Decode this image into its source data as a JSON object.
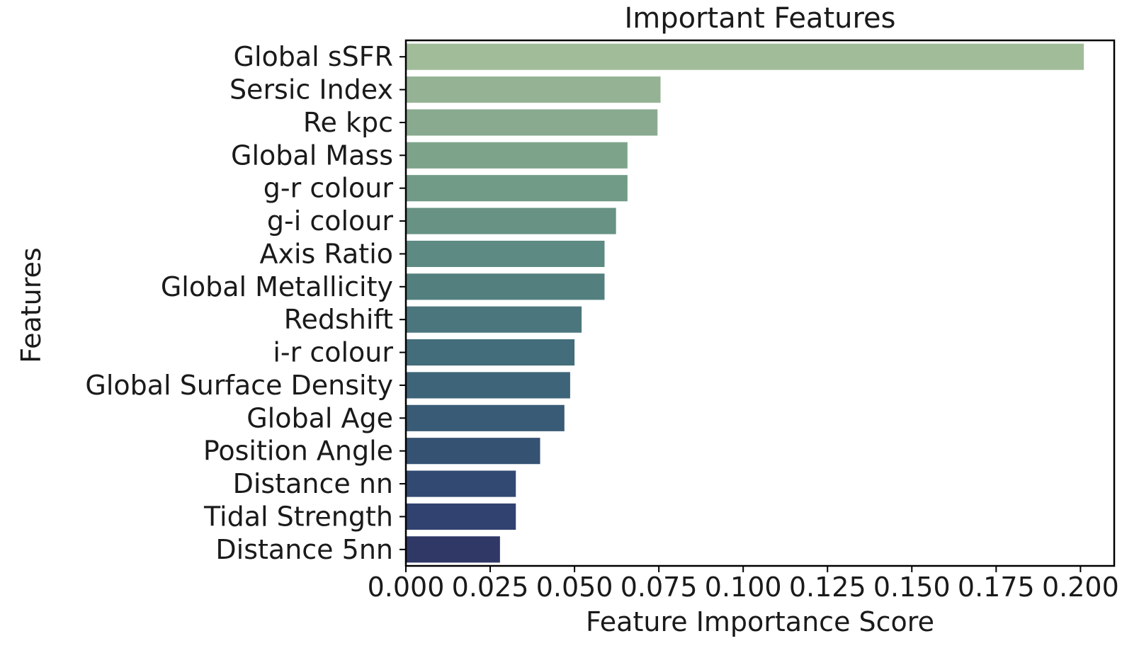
{
  "chart_data": {
    "type": "bar",
    "orientation": "horizontal",
    "title": "Important Features",
    "xlabel": "Feature Importance Score",
    "ylabel": "Features",
    "xlim": [
      0,
      0.21
    ],
    "xticks": [
      0.0,
      0.025,
      0.05,
      0.075,
      0.1,
      0.125,
      0.15,
      0.175,
      0.2
    ],
    "xtick_labels": [
      "0.000",
      "0.025",
      "0.050",
      "0.075",
      "0.100",
      "0.125",
      "0.150",
      "0.175",
      "0.200"
    ],
    "grid": false,
    "categories": [
      "Global sSFR",
      "Sersic Index",
      "Re kpc",
      "Global Mass",
      "g-r colour",
      "g-i colour",
      "Axis Ratio",
      "Global Metallicity",
      "Redshift",
      "i-r colour",
      "Global Surface Density",
      "Global Age",
      "Position Angle",
      "Distance nn",
      "Tidal Strength",
      "Distance 5nn"
    ],
    "values": [
      0.201,
      0.0755,
      0.0746,
      0.0657,
      0.0657,
      0.0623,
      0.0589,
      0.0589,
      0.0521,
      0.05,
      0.0487,
      0.047,
      0.0398,
      0.0326,
      0.0326,
      0.0279
    ],
    "colors": [
      "#a1bc99",
      "#95b394",
      "#89aa8f",
      "#7ea38b",
      "#719a87",
      "#679284",
      "#5d8a82",
      "#53807f",
      "#4b767d",
      "#436d7a",
      "#3e6479",
      "#395b76",
      "#355273",
      "#324a72",
      "#314170",
      "#303866"
    ]
  }
}
